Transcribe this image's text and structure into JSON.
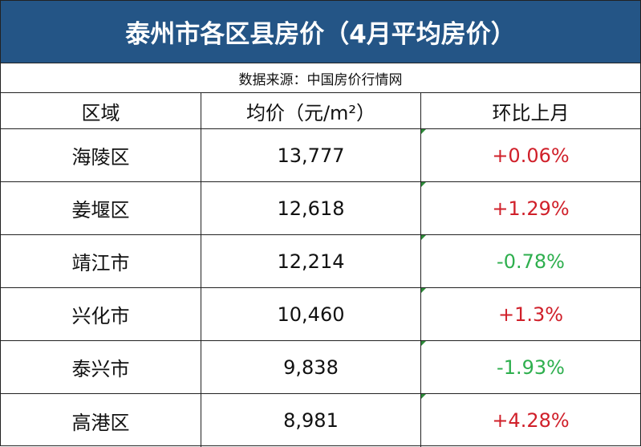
{
  "title": "泰州市各区县房价（4月平均房价）",
  "source": "数据来源：中国房价行情网",
  "table": {
    "header": [
      "区域",
      "均价（元/m²）",
      "环比上月"
    ],
    "rows": [
      [
        "海陵区",
        "13,777",
        "+0.06%"
      ],
      [
        "姜堰区",
        "12,618",
        "+1.29%"
      ],
      [
        "靖江市",
        "12,214",
        "-0.78%"
      ],
      [
        "兴化市",
        "10,460",
        "+1.3%"
      ],
      [
        "泰兴市",
        "9,838",
        "-1.93%"
      ],
      [
        "高港区",
        "8,981",
        "+4.28%"
      ]
    ]
  }
}
